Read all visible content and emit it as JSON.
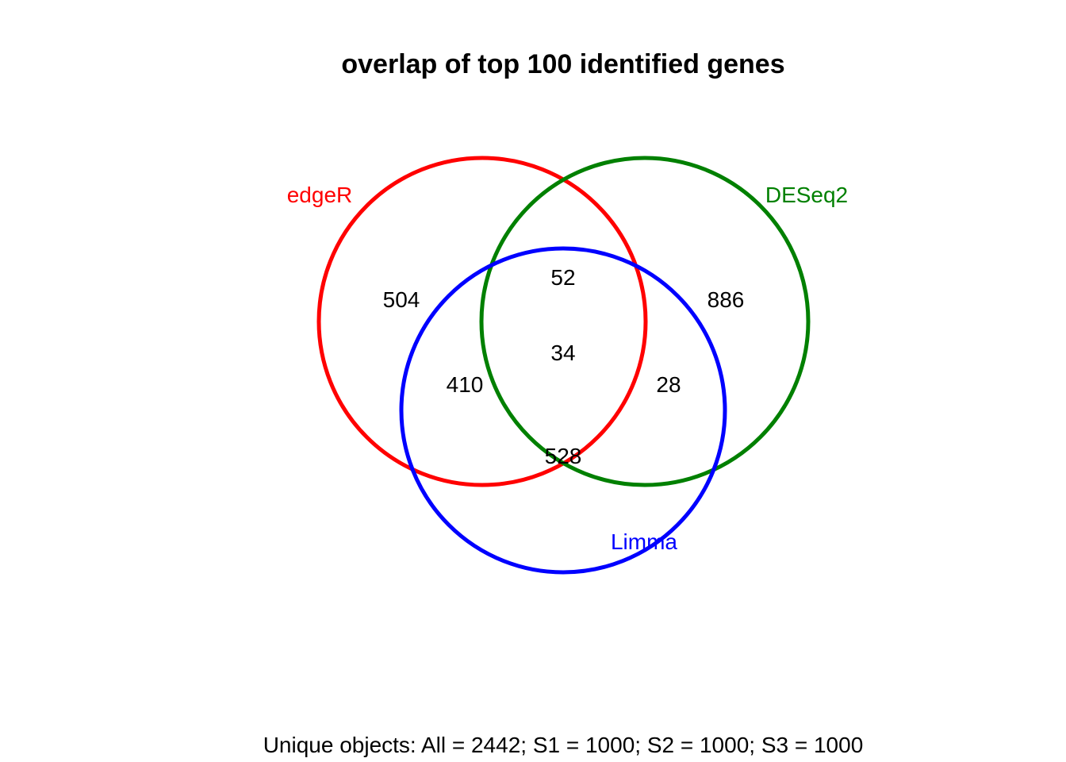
{
  "chart_data": {
    "type": "venn",
    "title": "overlap of top 100 identified genes",
    "sets": [
      {
        "name": "edgeR",
        "color": "#ff0000"
      },
      {
        "name": "DESeq2",
        "color": "#008000"
      },
      {
        "name": "Limma",
        "color": "#0000ff"
      }
    ],
    "regions": {
      "edgeR_only": 504,
      "DESeq2_only": 886,
      "edgeR_DESeq2": 52,
      "all_three": 34,
      "edgeR_Limma": 410,
      "DESeq2_Limma": 28,
      "Limma_only": 528
    },
    "footer": "Unique objects: All = 2442; S1 = 1000; S2 = 1000; S3 = 1000"
  }
}
